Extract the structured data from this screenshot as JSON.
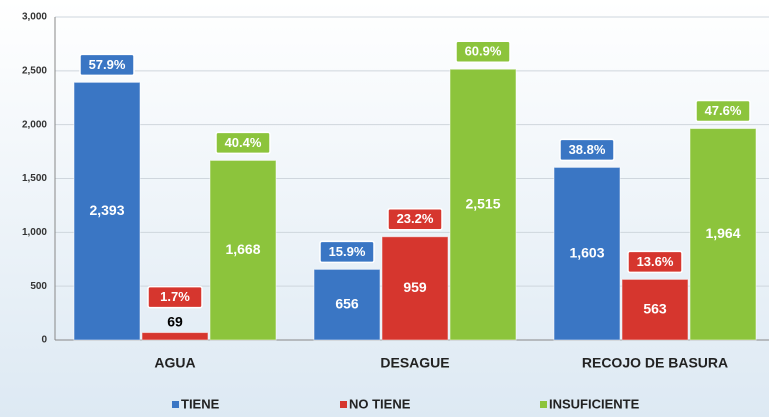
{
  "chart_data": {
    "type": "bar",
    "categories": [
      "AGUA",
      "DESAGUE",
      "RECOJO DE BASURA"
    ],
    "series": [
      {
        "name": "TIENE",
        "color": "#3a76c4",
        "values": [
          2393,
          656,
          1603
        ],
        "value_labels": [
          "2,393",
          "656",
          "1,603"
        ],
        "percentages": [
          "57.9%",
          "15.9%",
          "38.8%"
        ]
      },
      {
        "name": "NO TIENE",
        "color": "#d6362e",
        "values": [
          69,
          959,
          563
        ],
        "value_labels": [
          "69",
          "959",
          "563"
        ],
        "percentages": [
          "1.7%",
          "23.2%",
          "13.6%"
        ]
      },
      {
        "name": "INSUFICIENTE",
        "color": "#8cc43c",
        "values": [
          1668,
          2515,
          1964
        ],
        "value_labels": [
          "1,668",
          "2,515",
          "1,964"
        ],
        "percentages": [
          "40.4%",
          "60.9%",
          "47.6%"
        ]
      }
    ],
    "ylim": [
      0,
      3000
    ],
    "yticks": [
      0,
      500,
      {
        "value": 1000,
        "label": "1,000"
      },
      {
        "value": 1500,
        "label": "1,500"
      },
      {
        "value": 2000,
        "label": "2,000"
      },
      {
        "value": 2500,
        "label": "2,500"
      },
      {
        "value": 3000,
        "label": "3,000"
      }
    ],
    "grid": true,
    "legend": "bottom"
  }
}
